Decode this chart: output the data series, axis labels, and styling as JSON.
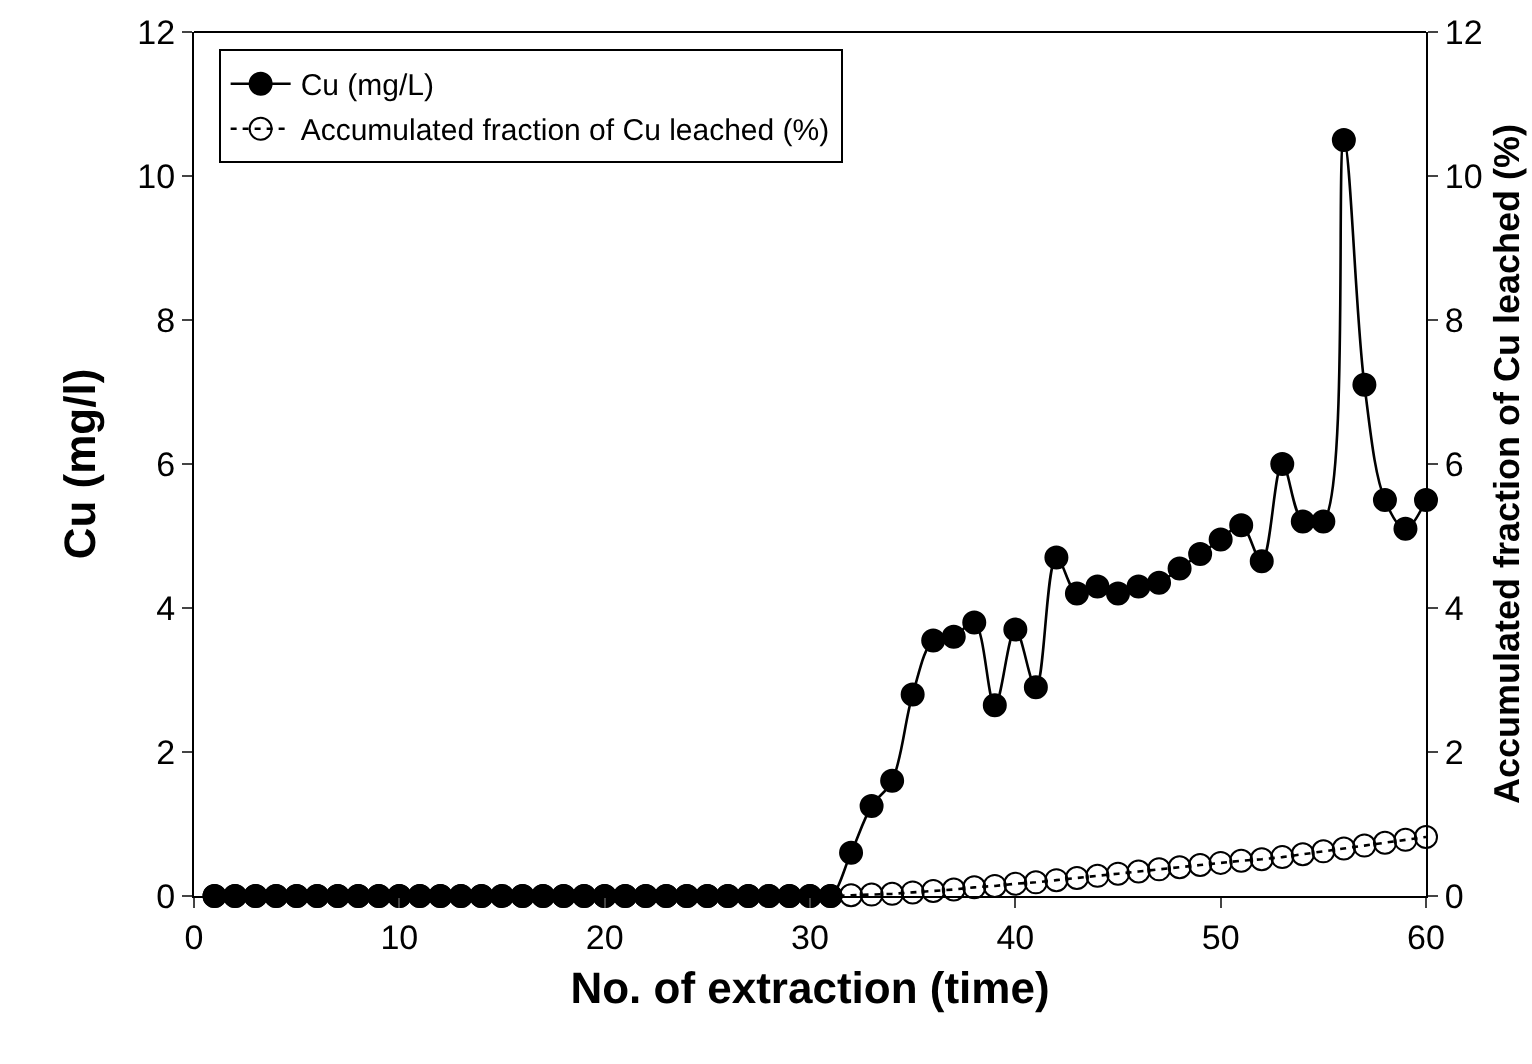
{
  "chart_data": {
    "type": "line",
    "xlabel": "No. of extraction (time)",
    "ylabel": "Cu (mg/l)",
    "y2label": "Accumulated fraction of Cu leached (%)",
    "x": [
      1,
      2,
      3,
      4,
      5,
      6,
      7,
      8,
      9,
      10,
      11,
      12,
      13,
      14,
      15,
      16,
      17,
      18,
      19,
      20,
      21,
      22,
      23,
      24,
      25,
      26,
      27,
      28,
      29,
      30,
      31,
      32,
      33,
      34,
      35,
      36,
      37,
      38,
      39,
      40,
      41,
      42,
      43,
      44,
      45,
      46,
      47,
      48,
      49,
      50,
      51,
      52,
      53,
      54,
      55,
      56,
      57,
      58,
      59,
      60
    ],
    "series": [
      {
        "name": "Cu (mg/L)",
        "color": "#000000",
        "marker": "circle",
        "line_style": "solid",
        "values": [
          0,
          0,
          0,
          0,
          0,
          0,
          0,
          0,
          0,
          0,
          0,
          0,
          0,
          0,
          0,
          0,
          0,
          0,
          0,
          0,
          0,
          0,
          0,
          0,
          0,
          0,
          0,
          0,
          0,
          0,
          0,
          0.6,
          1.25,
          1.6,
          2.8,
          3.55,
          3.6,
          3.8,
          2.65,
          3.7,
          2.9,
          4.7,
          4.2,
          4.3,
          4.2,
          4.3,
          4.35,
          4.55,
          4.75,
          4.95,
          5.15,
          4.65,
          6.0,
          5.2,
          5.2,
          10.5,
          7.1,
          5.5,
          5.1,
          5.5
        ]
      },
      {
        "name": "Accumulated fraction of Cu leached (%)",
        "color": "#000000",
        "marker": "circle-open",
        "line_style": "dotted",
        "axis": "y2",
        "values": [
          0,
          0,
          0,
          0,
          0,
          0,
          0,
          0,
          0,
          0,
          0,
          0,
          0,
          0,
          0,
          0,
          0,
          0,
          0,
          0,
          0,
          0,
          0,
          0,
          0,
          0,
          0,
          0,
          0,
          0,
          0,
          0.01,
          0.02,
          0.03,
          0.05,
          0.07,
          0.09,
          0.12,
          0.14,
          0.17,
          0.19,
          0.22,
          0.25,
          0.28,
          0.31,
          0.34,
          0.37,
          0.4,
          0.43,
          0.46,
          0.49,
          0.51,
          0.54,
          0.58,
          0.62,
          0.66,
          0.7,
          0.74,
          0.78,
          0.82
        ]
      }
    ],
    "xlim": [
      0,
      60
    ],
    "xticks": [
      0,
      10,
      20,
      30,
      40,
      50,
      60
    ],
    "ylim": [
      0,
      12
    ],
    "yticks": [
      0,
      2,
      4,
      6,
      8,
      10,
      12
    ],
    "y2lim": [
      0,
      12
    ],
    "y2ticks": [
      0,
      2,
      4,
      6,
      8,
      10,
      12
    ],
    "grid": false,
    "legend": "top left"
  }
}
